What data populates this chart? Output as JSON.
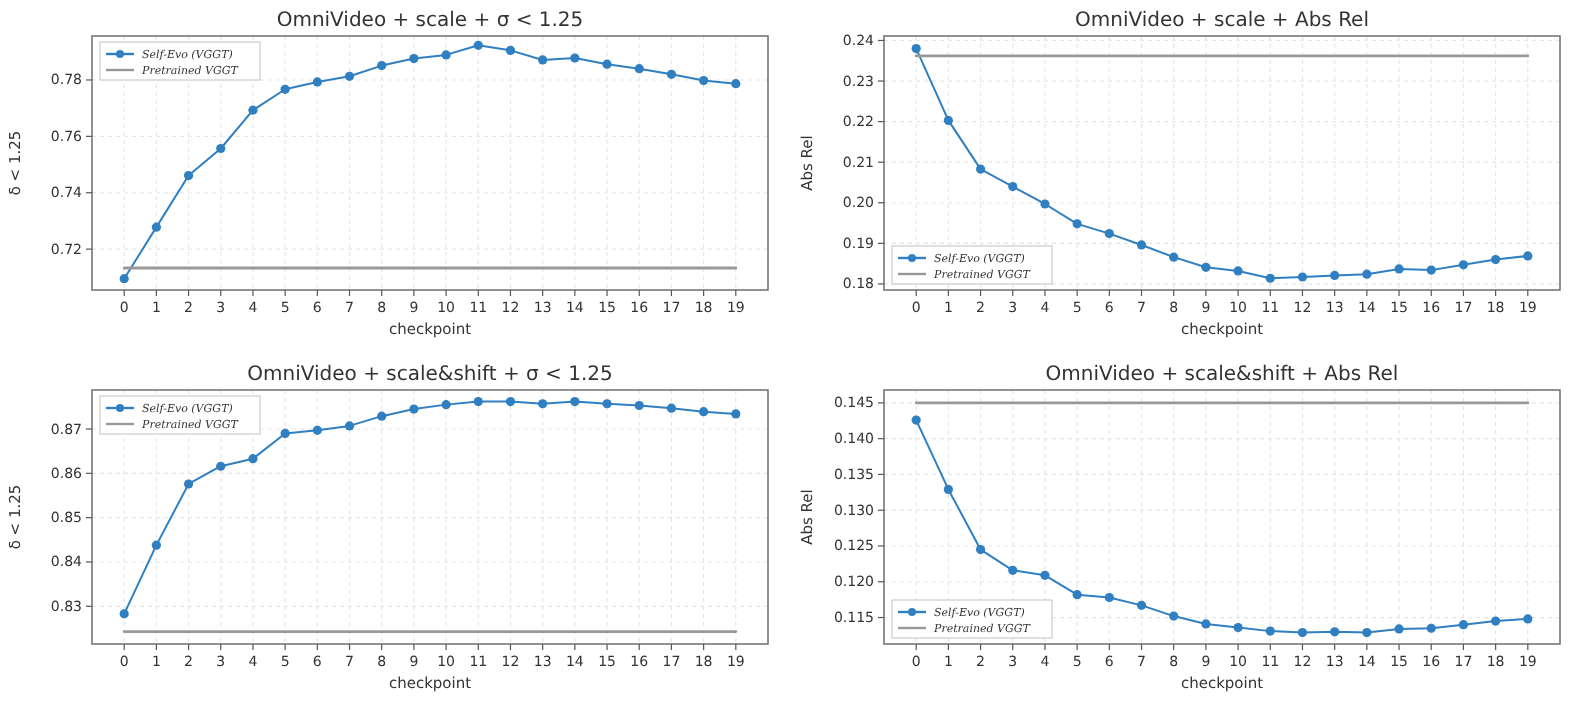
{
  "chart_data": [
    {
      "type": "line",
      "title": "OmniVideo + scale + σ < 1.25",
      "xlabel": "checkpoint",
      "ylabel": "δ < 1.25",
      "x": [
        0,
        1,
        2,
        3,
        4,
        5,
        6,
        7,
        8,
        9,
        10,
        11,
        12,
        13,
        14,
        15,
        16,
        17,
        18,
        19
      ],
      "xlim": [
        -1,
        20
      ],
      "xticks": [
        0,
        1,
        2,
        3,
        4,
        5,
        6,
        7,
        8,
        9,
        10,
        11,
        12,
        13,
        14,
        15,
        16,
        17,
        18,
        19
      ],
      "ylim": [
        0.7055,
        0.7956
      ],
      "yticks": [
        {
          "value": 0.72,
          "label": "0.72"
        },
        {
          "value": 0.74,
          "label": "0.74"
        },
        {
          "value": 0.76,
          "label": "0.76"
        },
        {
          "value": 0.78,
          "label": "0.78"
        }
      ],
      "grid": true,
      "legend": "top left",
      "series": [
        {
          "name": "Self-Evo (VGGT)",
          "color": "#2f7fc1",
          "marker": "circle",
          "values": [
            0.7095,
            0.7278,
            0.7461,
            0.7557,
            0.7693,
            0.7767,
            0.7793,
            0.7813,
            0.7851,
            0.7876,
            0.7889,
            0.7923,
            0.7905,
            0.7871,
            0.7878,
            0.7856,
            0.784,
            0.782,
            0.7798,
            0.7787
          ]
        },
        {
          "name": "Pretrained VGGT",
          "color": "#999999",
          "marker": "none",
          "values": [
            0.7133,
            0.7133,
            0.7133,
            0.7133,
            0.7133,
            0.7133,
            0.7133,
            0.7133,
            0.7133,
            0.7133,
            0.7133,
            0.7133,
            0.7133,
            0.7133,
            0.7133,
            0.7133,
            0.7133,
            0.7133,
            0.7133,
            0.7133
          ]
        }
      ]
    },
    {
      "type": "line",
      "title": "OmniVideo + scale + Abs Rel",
      "xlabel": "checkpoint",
      "ylabel": "Abs Rel",
      "x": [
        0,
        1,
        2,
        3,
        4,
        5,
        6,
        7,
        8,
        9,
        10,
        11,
        12,
        13,
        14,
        15,
        16,
        17,
        18,
        19
      ],
      "xlim": [
        -1,
        20
      ],
      "xticks": [
        0,
        1,
        2,
        3,
        4,
        5,
        6,
        7,
        8,
        9,
        10,
        11,
        12,
        13,
        14,
        15,
        16,
        17,
        18,
        19
      ],
      "ylim": [
        0.1785,
        0.2411
      ],
      "yticks": [
        {
          "value": 0.18,
          "label": "0.18"
        },
        {
          "value": 0.19,
          "label": "0.19"
        },
        {
          "value": 0.2,
          "label": "0.20"
        },
        {
          "value": 0.21,
          "label": "0.21"
        },
        {
          "value": 0.22,
          "label": "0.22"
        },
        {
          "value": 0.23,
          "label": "0.23"
        },
        {
          "value": 0.24,
          "label": "0.24"
        }
      ],
      "grid": true,
      "legend": "bottom left",
      "series": [
        {
          "name": "Self-Evo (VGGT)",
          "color": "#2f7fc1",
          "marker": "circle",
          "values": [
            0.238,
            0.2203,
            0.2083,
            0.204,
            0.1997,
            0.1948,
            0.1924,
            0.1896,
            0.1866,
            0.1841,
            0.1832,
            0.1814,
            0.1817,
            0.1821,
            0.1824,
            0.1837,
            0.1834,
            0.1847,
            0.186,
            0.1869
          ]
        },
        {
          "name": "Pretrained VGGT",
          "color": "#999999",
          "marker": "none",
          "values": [
            0.2362,
            0.2362,
            0.2362,
            0.2362,
            0.2362,
            0.2362,
            0.2362,
            0.2362,
            0.2362,
            0.2362,
            0.2362,
            0.2362,
            0.2362,
            0.2362,
            0.2362,
            0.2362,
            0.2362,
            0.2362,
            0.2362,
            0.2362
          ]
        }
      ]
    },
    {
      "type": "line",
      "title": "OmniVideo + scale&shift + σ < 1.25",
      "xlabel": "checkpoint",
      "ylabel": "δ < 1.25",
      "x": [
        0,
        1,
        2,
        3,
        4,
        5,
        6,
        7,
        8,
        9,
        10,
        11,
        12,
        13,
        14,
        15,
        16,
        17,
        18,
        19
      ],
      "xlim": [
        -1,
        20
      ],
      "xticks": [
        0,
        1,
        2,
        3,
        4,
        5,
        6,
        7,
        8,
        9,
        10,
        11,
        12,
        13,
        14,
        15,
        16,
        17,
        18,
        19
      ],
      "ylim": [
        0.8215,
        0.8788
      ],
      "yticks": [
        {
          "value": 0.83,
          "label": "0.83"
        },
        {
          "value": 0.84,
          "label": "0.84"
        },
        {
          "value": 0.85,
          "label": "0.85"
        },
        {
          "value": 0.86,
          "label": "0.86"
        },
        {
          "value": 0.87,
          "label": "0.87"
        }
      ],
      "grid": true,
      "legend": "top left",
      "series": [
        {
          "name": "Self-Evo (VGGT)",
          "color": "#2f7fc1",
          "marker": "circle",
          "values": [
            0.8283,
            0.8438,
            0.8576,
            0.8616,
            0.8633,
            0.869,
            0.8697,
            0.8707,
            0.8729,
            0.8745,
            0.8755,
            0.8762,
            0.8762,
            0.8757,
            0.8762,
            0.8757,
            0.8753,
            0.8747,
            0.8739,
            0.8734
          ]
        },
        {
          "name": "Pretrained VGGT",
          "color": "#999999",
          "marker": "none",
          "values": [
            0.8243,
            0.8243,
            0.8243,
            0.8243,
            0.8243,
            0.8243,
            0.8243,
            0.8243,
            0.8243,
            0.8243,
            0.8243,
            0.8243,
            0.8243,
            0.8243,
            0.8243,
            0.8243,
            0.8243,
            0.8243,
            0.8243,
            0.8243
          ]
        }
      ]
    },
    {
      "type": "line",
      "title": "OmniVideo + scale&shift + Abs Rel",
      "xlabel": "checkpoint",
      "ylabel": "Abs Rel",
      "x": [
        0,
        1,
        2,
        3,
        4,
        5,
        6,
        7,
        8,
        9,
        10,
        11,
        12,
        13,
        14,
        15,
        16,
        17,
        18,
        19
      ],
      "xlim": [
        -1,
        20
      ],
      "xticks": [
        0,
        1,
        2,
        3,
        4,
        5,
        6,
        7,
        8,
        9,
        10,
        11,
        12,
        13,
        14,
        15,
        16,
        17,
        18,
        19
      ],
      "ylim": [
        0.1113,
        0.1468
      ],
      "yticks": [
        {
          "value": 0.115,
          "label": "0.115"
        },
        {
          "value": 0.12,
          "label": "0.120"
        },
        {
          "value": 0.125,
          "label": "0.125"
        },
        {
          "value": 0.13,
          "label": "0.130"
        },
        {
          "value": 0.135,
          "label": "0.135"
        },
        {
          "value": 0.14,
          "label": "0.140"
        },
        {
          "value": 0.145,
          "label": "0.145"
        }
      ],
      "grid": true,
      "legend": "bottom left",
      "series": [
        {
          "name": "Self-Evo (VGGT)",
          "color": "#2f7fc1",
          "marker": "circle",
          "values": [
            0.1426,
            0.1329,
            0.1245,
            0.1216,
            0.1209,
            0.1182,
            0.1178,
            0.1167,
            0.1152,
            0.1141,
            0.1136,
            0.1131,
            0.1129,
            0.113,
            0.1129,
            0.1134,
            0.1135,
            0.114,
            0.1145,
            0.1148
          ]
        },
        {
          "name": "Pretrained VGGT",
          "color": "#999999",
          "marker": "none",
          "values": [
            0.145,
            0.145,
            0.145,
            0.145,
            0.145,
            0.145,
            0.145,
            0.145,
            0.145,
            0.145,
            0.145,
            0.145,
            0.145,
            0.145,
            0.145,
            0.145,
            0.145,
            0.145,
            0.145,
            0.145
          ]
        }
      ]
    }
  ]
}
